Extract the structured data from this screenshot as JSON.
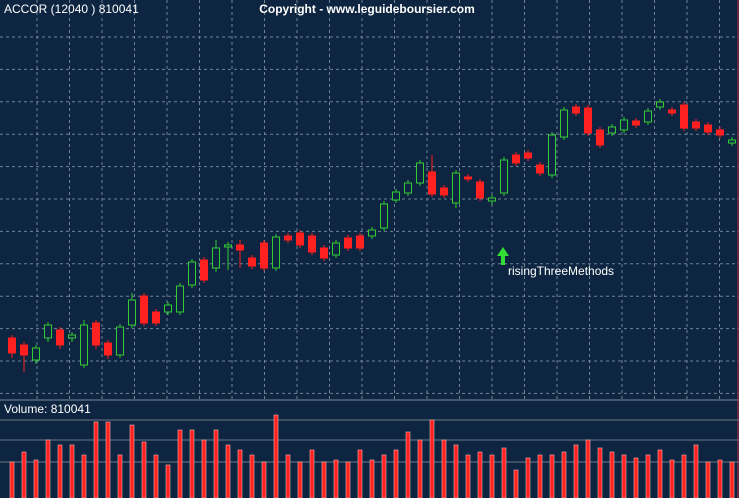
{
  "chart_data": [
    {
      "type": "candlestick",
      "title": "ACCOR (12040 ) 810041",
      "subtitle": "Copyright - www.leguideboursier.com",
      "annotation": "risingThreeMethods",
      "up_color": "#33cc33",
      "down_color": "#ff2020",
      "grid": true,
      "ylim": [
        0,
        400
      ],
      "open": [
        62,
        55,
        40,
        62,
        70,
        62,
        35,
        77,
        57,
        45,
        75,
        104,
        88,
        88,
        88,
        115,
        140,
        132,
        153,
        155,
        142,
        157,
        132,
        164,
        167,
        164,
        152,
        145,
        162,
        164,
        164,
        172,
        200,
        207,
        217,
        228,
        212,
        197,
        223,
        218,
        199,
        207,
        245,
        247,
        235,
        225,
        263,
        293,
        292,
        270,
        267,
        270,
        279,
        278,
        293,
        290,
        295,
        278,
        275,
        270,
        257
      ],
      "close": [
        47,
        45,
        52,
        75,
        55,
        65,
        75,
        55,
        45,
        73,
        100,
        77,
        77,
        95,
        114,
        138,
        120,
        152,
        155,
        150,
        134,
        132,
        163,
        160,
        155,
        148,
        142,
        157,
        152,
        152,
        170,
        196,
        208,
        217,
        237,
        206,
        205,
        227,
        221,
        202,
        202,
        240,
        237,
        242,
        227,
        265,
        290,
        287,
        267,
        255,
        273,
        280,
        275,
        289,
        298,
        287,
        272,
        272,
        268,
        265,
        260
      ],
      "high": [
        65,
        58,
        55,
        78,
        73,
        68,
        80,
        80,
        60,
        76,
        107,
        107,
        91,
        98,
        117,
        141,
        143,
        160,
        158,
        160,
        145,
        160,
        166,
        167,
        170,
        167,
        155,
        160,
        165,
        167,
        173,
        199,
        211,
        220,
        240,
        245,
        215,
        230,
        226,
        221,
        205,
        243,
        248,
        250,
        238,
        268,
        293,
        296,
        295,
        273,
        276,
        283,
        282,
        292,
        301,
        293,
        298,
        281,
        278,
        273,
        263
      ],
      "low": [
        42,
        28,
        36,
        58,
        51,
        58,
        32,
        51,
        41,
        42,
        72,
        74,
        74,
        85,
        85,
        112,
        117,
        128,
        130,
        132,
        131,
        129,
        129,
        157,
        152,
        145,
        139,
        142,
        149,
        149,
        161,
        169,
        197,
        204,
        214,
        203,
        202,
        192,
        218,
        199,
        196,
        204,
        234,
        239,
        224,
        222,
        260,
        284,
        264,
        252,
        264,
        267,
        272,
        275,
        290,
        284,
        269,
        269,
        265,
        262,
        254
      ]
    },
    {
      "type": "bar",
      "title": "Volume: 810041",
      "color": "#ff2020",
      "ylim": [
        0,
        98
      ],
      "values": [
        36,
        46,
        38,
        58,
        53,
        53,
        43,
        76,
        76,
        43,
        73,
        56,
        43,
        33,
        68,
        68,
        58,
        68,
        53,
        48,
        43,
        36,
        83,
        43,
        36,
        48,
        36,
        38,
        36,
        48,
        38,
        43,
        48,
        66,
        58,
        78,
        58,
        53,
        43,
        46,
        43,
        50,
        28,
        40,
        43,
        43,
        46,
        53,
        58,
        50,
        46,
        43,
        40,
        43,
        48,
        38,
        43,
        53,
        36,
        38,
        36
      ]
    }
  ]
}
